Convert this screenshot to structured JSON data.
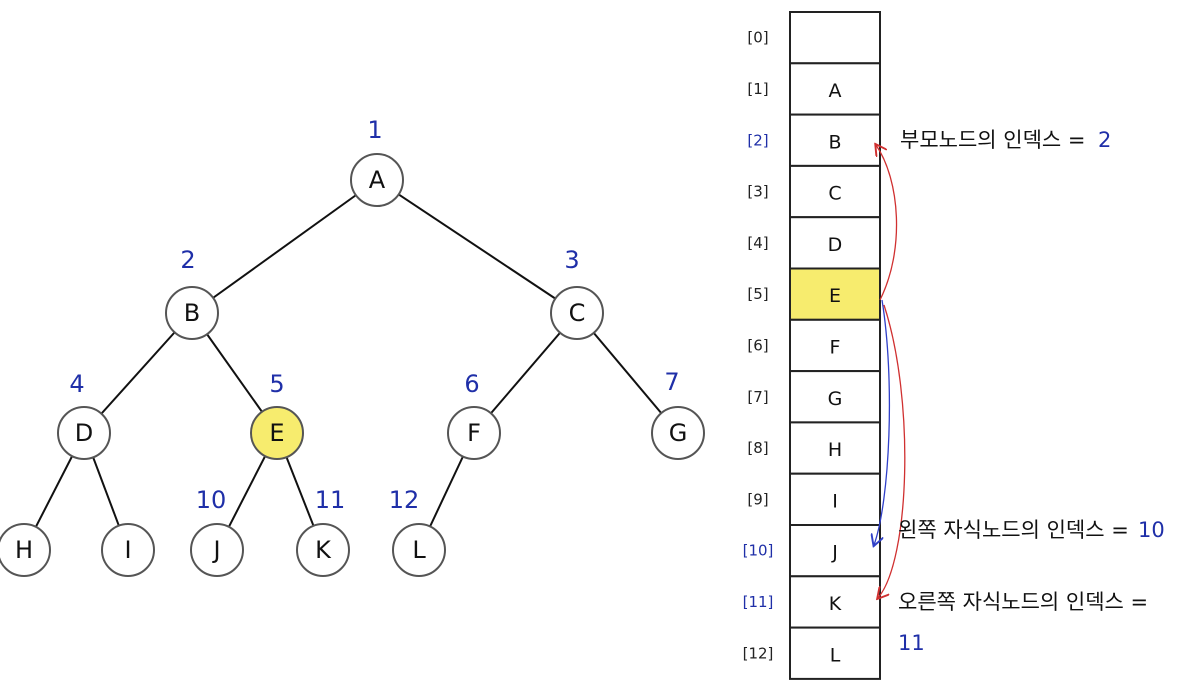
{
  "colors": {
    "highlight_fill": "#f7ec6e",
    "index_blue": "#1f2fa8",
    "parent_arrow": "#d03030",
    "left_child_arrow": "#3040c8",
    "right_child_arrow": "#d03030"
  },
  "tree": {
    "nodes": [
      {
        "label": "A",
        "index": "1"
      },
      {
        "label": "B",
        "index": "2"
      },
      {
        "label": "C",
        "index": "3"
      },
      {
        "label": "D",
        "index": "4"
      },
      {
        "label": "E",
        "index": "5",
        "highlight": true
      },
      {
        "label": "F",
        "index": "6"
      },
      {
        "label": "G",
        "index": "7"
      },
      {
        "label": "H",
        "index": ""
      },
      {
        "label": "I",
        "index": ""
      },
      {
        "label": "J",
        "index": "10"
      },
      {
        "label": "K",
        "index": "11"
      },
      {
        "label": "L",
        "index": "12"
      }
    ],
    "edges": [
      [
        "A",
        "B"
      ],
      [
        "A",
        "C"
      ],
      [
        "B",
        "D"
      ],
      [
        "B",
        "E"
      ],
      [
        "C",
        "F"
      ],
      [
        "C",
        "G"
      ],
      [
        "D",
        "H"
      ],
      [
        "D",
        "I"
      ],
      [
        "E",
        "J"
      ],
      [
        "E",
        "K"
      ],
      [
        "F",
        "L"
      ]
    ]
  },
  "array": {
    "cells": [
      {
        "index": "[0]",
        "value": ""
      },
      {
        "index": "[1]",
        "value": "A"
      },
      {
        "index": "[2]",
        "value": "B",
        "index_highlight": true
      },
      {
        "index": "[3]",
        "value": "C"
      },
      {
        "index": "[4]",
        "value": "D"
      },
      {
        "index": "[5]",
        "value": "E",
        "highlight": true
      },
      {
        "index": "[6]",
        "value": "F"
      },
      {
        "index": "[7]",
        "value": "G"
      },
      {
        "index": "[8]",
        "value": "H"
      },
      {
        "index": "[9]",
        "value": "I"
      },
      {
        "index": "[10]",
        "value": "J",
        "index_highlight": true
      },
      {
        "index": "[11]",
        "value": "K",
        "index_highlight": true
      },
      {
        "index": "[12]",
        "value": "L"
      }
    ]
  },
  "annotations": {
    "parent": {
      "text": "부모노드의 인덱스 =",
      "value": "2"
    },
    "left_child": {
      "text": "왼쪽 자식노드의 인덱스 =",
      "value": "10"
    },
    "right_child": {
      "text": "오른쪽 자식노드의 인덱스 =",
      "value": "11"
    }
  }
}
